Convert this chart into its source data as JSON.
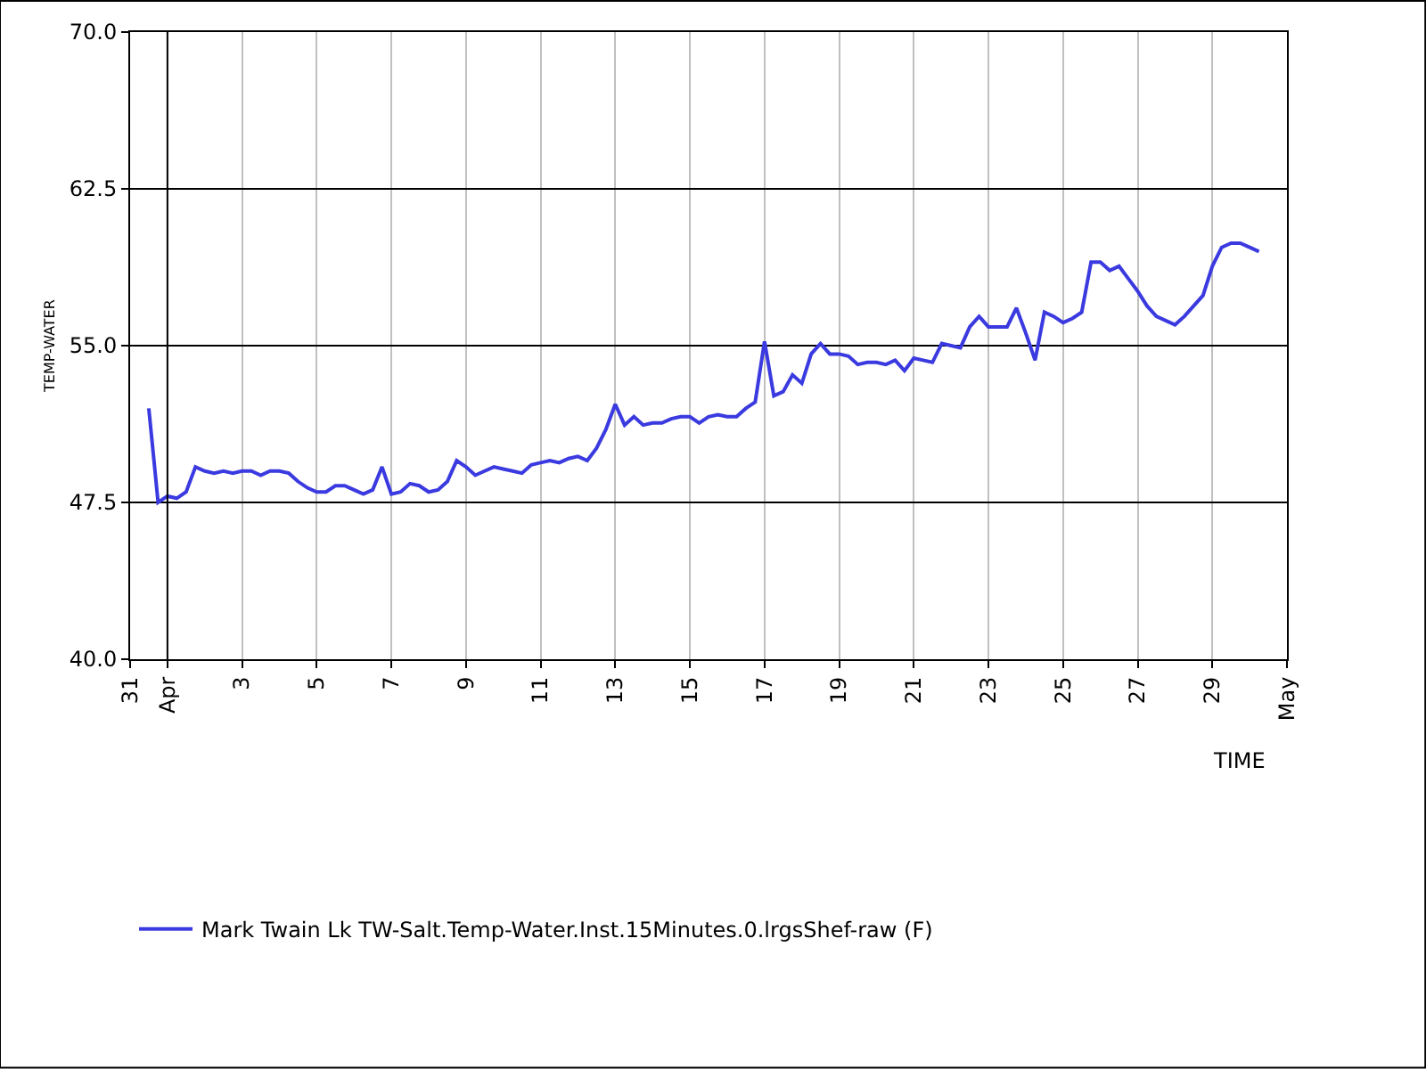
{
  "chart_data": {
    "type": "line",
    "xlabel": "TIME",
    "ylabel": "TEMP-WATER",
    "x": [
      "--03-31T12:00",
      "--03-31T18:00",
      "--04-01T00:00",
      "--04-01T06:00",
      "--04-01T12:00",
      "--04-01T18:00",
      "--04-02T00:00",
      "--04-02T06:00",
      "--04-02T12:00",
      "--04-02T18:00",
      "--04-03T00:00",
      "--04-03T06:00",
      "--04-03T12:00",
      "--04-03T18:00",
      "--04-04T00:00",
      "--04-04T06:00",
      "--04-04T12:00",
      "--04-04T18:00",
      "--04-05T00:00",
      "--04-05T06:00",
      "--04-05T12:00",
      "--04-05T18:00",
      "--04-06T00:00",
      "--04-06T06:00",
      "--04-06T12:00",
      "--04-06T18:00",
      "--04-07T00:00",
      "--04-07T06:00",
      "--04-07T12:00",
      "--04-07T18:00",
      "--04-08T00:00",
      "--04-08T06:00",
      "--04-08T12:00",
      "--04-08T18:00",
      "--04-09T00:00",
      "--04-09T06:00",
      "--04-09T12:00",
      "--04-09T18:00",
      "--04-10T00:00",
      "--04-10T06:00",
      "--04-10T12:00",
      "--04-10T18:00",
      "--04-11T00:00",
      "--04-11T06:00",
      "--04-11T12:00",
      "--04-11T18:00",
      "--04-12T00:00",
      "--04-12T06:00",
      "--04-12T12:00",
      "--04-12T18:00",
      "--04-13T00:00",
      "--04-13T06:00",
      "--04-13T12:00",
      "--04-13T18:00",
      "--04-14T00:00",
      "--04-14T06:00",
      "--04-14T12:00",
      "--04-14T18:00",
      "--04-15T00:00",
      "--04-15T06:00",
      "--04-15T12:00",
      "--04-15T18:00",
      "--04-16T00:00",
      "--04-16T06:00",
      "--04-16T12:00",
      "--04-16T18:00",
      "--04-17T00:00",
      "--04-17T06:00",
      "--04-17T12:00",
      "--04-17T18:00",
      "--04-18T00:00",
      "--04-18T06:00",
      "--04-18T12:00",
      "--04-18T18:00",
      "--04-19T00:00",
      "--04-19T06:00",
      "--04-19T12:00",
      "--04-19T18:00",
      "--04-20T00:00",
      "--04-20T06:00",
      "--04-20T12:00",
      "--04-20T18:00",
      "--04-21T00:00",
      "--04-21T06:00",
      "--04-21T12:00",
      "--04-21T18:00",
      "--04-22T00:00",
      "--04-22T06:00",
      "--04-22T12:00",
      "--04-22T18:00",
      "--04-23T00:00",
      "--04-23T06:00",
      "--04-23T12:00",
      "--04-23T18:00",
      "--04-24T00:00",
      "--04-24T06:00",
      "--04-24T12:00",
      "--04-24T18:00",
      "--04-25T00:00",
      "--04-25T06:00",
      "--04-25T12:00",
      "--04-25T18:00",
      "--04-26T00:00",
      "--04-26T06:00",
      "--04-26T12:00",
      "--04-26T18:00",
      "--04-27T00:00",
      "--04-27T06:00",
      "--04-27T12:00",
      "--04-28T00:00",
      "--04-28T06:00",
      "--04-28T12:00",
      "--04-28T18:00",
      "--04-29T00:00",
      "--04-29T06:00",
      "--04-29T12:00",
      "--04-29T18:00",
      "--04-30T00:00",
      "--04-30T06:00"
    ],
    "series": [
      {
        "name": "Mark Twain Lk TW-Salt.Temp-Water.Inst.15Minutes.0.lrgsShef-raw (F)",
        "color": "#3a3ae0",
        "values": [
          52.0,
          47.5,
          47.8,
          47.7,
          48.0,
          49.2,
          49.0,
          48.9,
          49.0,
          48.9,
          49.0,
          49.0,
          48.8,
          49.0,
          49.0,
          48.9,
          48.5,
          48.2,
          48.0,
          48.0,
          48.3,
          48.3,
          48.1,
          47.9,
          48.1,
          49.2,
          47.9,
          48.0,
          48.4,
          48.3,
          48.0,
          48.1,
          48.5,
          49.5,
          49.2,
          48.8,
          49.0,
          49.2,
          49.1,
          49.0,
          48.9,
          49.3,
          49.4,
          49.5,
          49.4,
          49.6,
          49.7,
          49.5,
          50.1,
          51.0,
          52.2,
          51.2,
          51.6,
          51.2,
          51.3,
          51.3,
          51.5,
          51.6,
          51.6,
          51.3,
          51.6,
          51.7,
          51.6,
          51.6,
          52.0,
          52.3,
          55.2,
          52.6,
          52.8,
          53.6,
          53.2,
          54.6,
          55.1,
          54.6,
          54.6,
          54.5,
          54.1,
          54.2,
          54.2,
          54.1,
          54.3,
          53.8,
          54.4,
          54.3,
          54.2,
          55.1,
          55.0,
          54.9,
          55.9,
          56.4,
          55.9,
          55.9,
          55.9,
          56.8,
          55.6,
          54.3,
          56.6,
          56.4,
          56.1,
          56.3,
          56.6,
          59.0,
          59.0,
          58.6,
          58.8,
          58.2,
          57.6,
          56.9,
          56.4,
          56.0,
          56.4,
          56.9,
          57.4,
          58.8,
          59.7,
          59.9,
          59.9,
          59.7,
          59.5
        ]
      }
    ],
    "xlim": [
      "--03-31",
      "--05-01"
    ],
    "xticks": [
      {
        "value": "--03-31",
        "label": "31"
      },
      {
        "value": "--04-01",
        "label": "Apr"
      },
      {
        "value": "--04-03",
        "label": "3"
      },
      {
        "value": "--04-05",
        "label": "5"
      },
      {
        "value": "--04-07",
        "label": "7"
      },
      {
        "value": "--04-09",
        "label": "9"
      },
      {
        "value": "--04-11",
        "label": "11"
      },
      {
        "value": "--04-13",
        "label": "13"
      },
      {
        "value": "--04-15",
        "label": "15"
      },
      {
        "value": "--04-17",
        "label": "17"
      },
      {
        "value": "--04-19",
        "label": "19"
      },
      {
        "value": "--04-21",
        "label": "21"
      },
      {
        "value": "--04-23",
        "label": "23"
      },
      {
        "value": "--04-25",
        "label": "25"
      },
      {
        "value": "--04-27",
        "label": "27"
      },
      {
        "value": "--04-29",
        "label": "29"
      },
      {
        "value": "--05-01",
        "label": "May"
      }
    ],
    "ylim": [
      40.0,
      70.0
    ],
    "yticks": [
      {
        "value": 40.0,
        "label": "40.0"
      },
      {
        "value": 47.5,
        "label": "47.5"
      },
      {
        "value": 55.0,
        "label": "55.0"
      },
      {
        "value": 62.5,
        "label": "62.5"
      },
      {
        "value": 70.0,
        "label": "70.0"
      }
    ],
    "grid": true,
    "legend": "bottom left",
    "marker": "none",
    "line_style": "solid"
  }
}
